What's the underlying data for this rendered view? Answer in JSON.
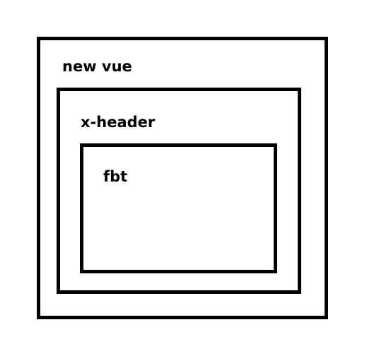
{
  "diagram": {
    "outer": {
      "label": "new vue"
    },
    "middle": {
      "label": "x-header"
    },
    "inner": {
      "label": "fbt"
    }
  },
  "colors": {
    "border": "#000000",
    "background": "#ffffff",
    "text": "#000000"
  }
}
